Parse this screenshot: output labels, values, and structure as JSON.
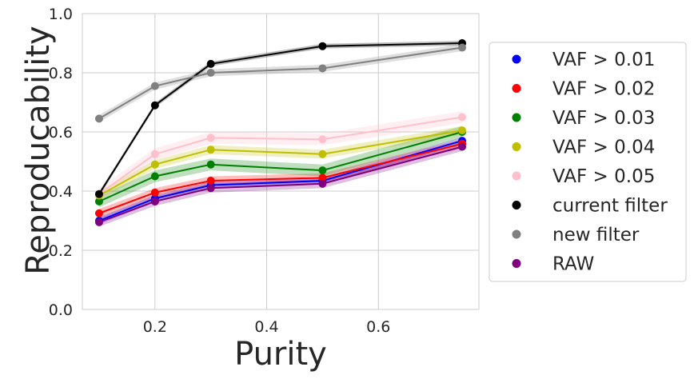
{
  "chart_data": {
    "type": "line",
    "title": "",
    "xlabel": "Purity",
    "ylabel": "Reproducability",
    "xlim": [
      0.07,
      0.78
    ],
    "ylim": [
      0.0,
      1.0
    ],
    "xticks": [
      0.2,
      0.4,
      0.6
    ],
    "xtick_labels": [
      "0.2",
      "0.4",
      "0.6"
    ],
    "yticks": [
      0.0,
      0.2,
      0.4,
      0.6,
      0.8,
      1.0
    ],
    "ytick_labels": [
      "0.0",
      "0.2",
      "0.4",
      "0.6",
      "0.8",
      "1.0"
    ],
    "grid": true,
    "legend_position": "right, outside plot",
    "x": [
      0.1,
      0.2,
      0.3,
      0.5,
      0.75
    ],
    "series": [
      {
        "name": "VAF > 0.01",
        "color": "#0000ff",
        "values": [
          0.3,
          0.375,
          0.42,
          0.435,
          0.57
        ],
        "band": 0.012
      },
      {
        "name": "VAF > 0.02",
        "color": "#ff0000",
        "values": [
          0.325,
          0.395,
          0.435,
          0.445,
          0.56
        ],
        "band": 0.015
      },
      {
        "name": "VAF > 0.03",
        "color": "#008000",
        "values": [
          0.365,
          0.45,
          0.49,
          0.47,
          0.6
        ],
        "band": 0.02
      },
      {
        "name": "VAF > 0.04",
        "color": "#bfbf00",
        "values": [
          0.385,
          0.49,
          0.54,
          0.525,
          0.605
        ],
        "band": 0.015
      },
      {
        "name": "VAF > 0.05",
        "color": "#ffc0cb",
        "values": [
          0.39,
          0.525,
          0.58,
          0.575,
          0.65
        ],
        "band": 0.02
      },
      {
        "name": "current filter",
        "color": "#000000",
        "values": [
          0.39,
          0.69,
          0.83,
          0.89,
          0.9
        ],
        "band": 0.008
      },
      {
        "name": "new filter",
        "color": "#808080",
        "values": [
          0.645,
          0.755,
          0.8,
          0.815,
          0.885
        ],
        "band": 0.012
      },
      {
        "name": "RAW",
        "color": "#800080",
        "values": [
          0.295,
          0.365,
          0.41,
          0.425,
          0.55
        ],
        "band": 0.015
      }
    ]
  }
}
